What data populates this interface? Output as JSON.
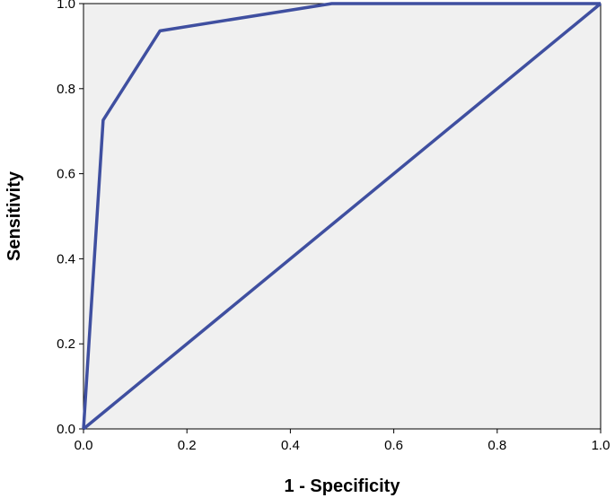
{
  "chart_data": {
    "type": "line",
    "title": "",
    "xlabel": "1 - Specificity",
    "ylabel": "Sensitivity",
    "xlim": [
      0,
      1
    ],
    "ylim": [
      0,
      1
    ],
    "x_ticks": [
      "0.0",
      "0.2",
      "0.4",
      "0.6",
      "0.8",
      "1.0"
    ],
    "y_ticks": [
      "0.0",
      "0.2",
      "0.4",
      "0.6",
      "0.8",
      "1.0"
    ],
    "grid": false,
    "legend": "none",
    "plot_background": "#f0f0f0",
    "line_color": "#3f4fa0",
    "series": [
      {
        "x": [
          0.0,
          0.038,
          0.148,
          0.48,
          1.0
        ],
        "y": [
          0.0,
          0.726,
          0.936,
          1.0,
          1.0
        ]
      },
      {
        "x": [
          0.0,
          1.0
        ],
        "y": [
          0.0,
          1.0
        ]
      }
    ]
  }
}
